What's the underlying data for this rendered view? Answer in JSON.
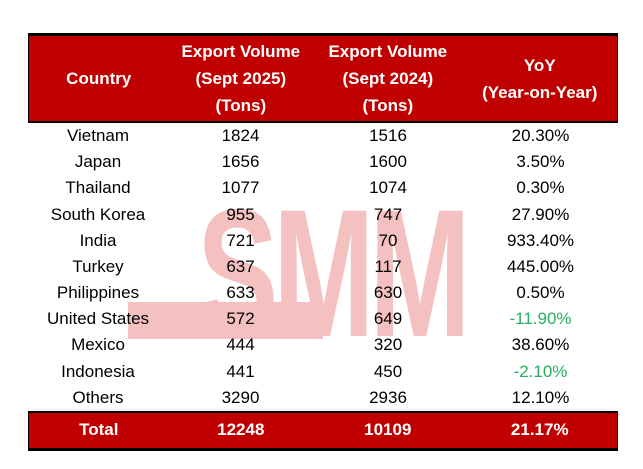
{
  "colors": {
    "accent": "#c00000",
    "header_text": "#ffffff",
    "body_text": "#000000",
    "negative": "#28ae60",
    "watermark": "#f4c0c0"
  },
  "watermark": {
    "text": "SMM"
  },
  "chart_data": {
    "type": "table",
    "columns": [
      "Country",
      "Export Volume\n(Sept 2025)\n(Tons)",
      "Export Volume\n(Sept 2024)\n(Tons)",
      "YoY\n(Year-on-Year)"
    ],
    "rows": [
      [
        "Vietnam",
        1824,
        1516,
        "20.30%"
      ],
      [
        "Japan",
        1656,
        1600,
        "3.50%"
      ],
      [
        "Thailand",
        1077,
        1074,
        "0.30%"
      ],
      [
        "South Korea",
        955,
        747,
        "27.90%"
      ],
      [
        "India",
        721,
        70,
        "933.40%"
      ],
      [
        "Turkey",
        637,
        117,
        "445.00%"
      ],
      [
        "Philippines",
        633,
        630,
        "0.50%"
      ],
      [
        "United States",
        572,
        649,
        "-11.90%"
      ],
      [
        "Mexico",
        444,
        320,
        "38.60%"
      ],
      [
        "Indonesia",
        441,
        450,
        "-2.10%"
      ],
      [
        "Others",
        3290,
        2936,
        "12.10%"
      ]
    ],
    "total_row": [
      "Total",
      12248,
      10109,
      "21.17%"
    ]
  }
}
